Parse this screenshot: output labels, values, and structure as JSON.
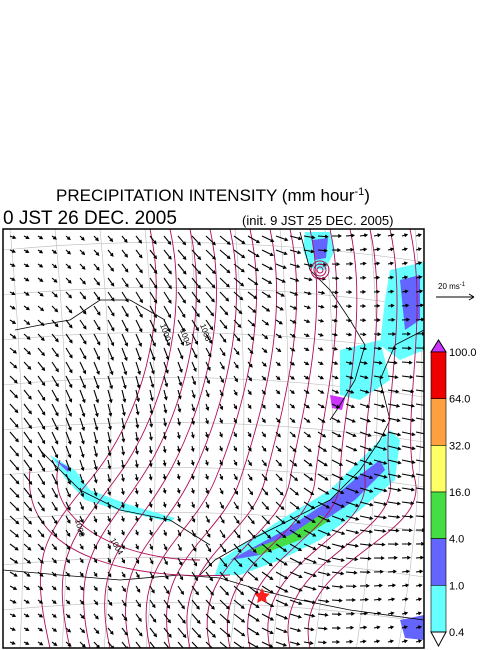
{
  "header": {
    "title": "PRECIPITATION INTENSITY (mm hour",
    "title_sup": "-1",
    "title_end": ")",
    "valid_time": "0 JST 26 DEC. 2005",
    "init_time": "(init. 9 JST 25 DEC. 2005)"
  },
  "map": {
    "vector_scale": {
      "label": "20 ms",
      "sup": "-1"
    },
    "contour_labels": [
      "1000",
      "1004",
      "1008",
      "1004",
      "1008"
    ],
    "colorbar": {
      "levels": [
        {
          "value": 100,
          "label": "100.0"
        },
        {
          "value": 64,
          "label": "64.0"
        },
        {
          "value": 32,
          "label": "32.0"
        },
        {
          "value": 16,
          "label": "16.0"
        },
        {
          "value": 4,
          "label": "4.0"
        },
        {
          "value": 1,
          "label": "1.0"
        },
        {
          "value": 0.4,
          "label": "0.4"
        }
      ],
      "colors": [
        "#ee0000",
        "#ffa040",
        "#ffff66",
        "#44dd44",
        "#6464ff",
        "#66ffff"
      ],
      "over_color": "#cc33ff",
      "under_color": "#ffffff"
    }
  }
}
